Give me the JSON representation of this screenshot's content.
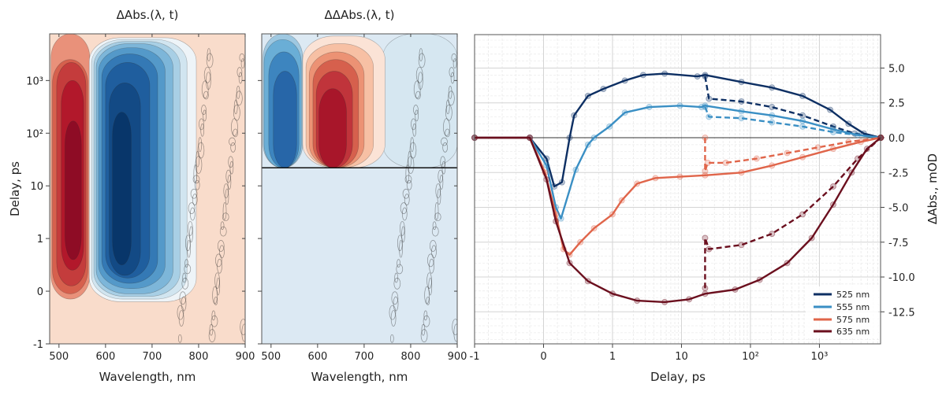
{
  "chart_data": [
    {
      "type": "heatmap",
      "title": "ΔAbs.(λ, t)",
      "xlabel": "Wavelength, nm",
      "ylabel": "Delay, ps",
      "xlim": [
        480,
        900
      ],
      "yscale": "symlog (linear -1..1, log above)",
      "ylim": [
        -1,
        7700
      ],
      "xticks": [
        "500",
        "600",
        "700",
        "800",
        "900"
      ],
      "xtick_values": [
        500,
        600,
        700,
        800,
        900
      ],
      "yticks": [
        "-1",
        "0",
        "1",
        "10",
        "10²",
        "10³"
      ],
      "ytick_values": [
        -1,
        0,
        1,
        10,
        100,
        1000
      ],
      "background_color": "#f9dccb",
      "features": [
        {
          "wl": [
            483,
            566
          ],
          "t": [
            -0.15,
            7700
          ],
          "color": "#e9917a"
        },
        {
          "wl": [
            486,
            562
          ],
          "t": [
            -0.05,
            2500
          ],
          "color": "#d6604d"
        },
        {
          "wl": [
            495,
            558
          ],
          "t": [
            0.1,
            2200
          ],
          "color": "#c43c3c"
        },
        {
          "wl": [
            505,
            553
          ],
          "t": [
            0.4,
            1000
          ],
          "color": "#b2182b"
        },
        {
          "wl": [
            513,
            548
          ],
          "t": [
            0.6,
            170
          ],
          "color": "#8e0c25"
        },
        {
          "wl": [
            565,
            795
          ],
          "t": [
            -0.2,
            6500
          ],
          "color": "#eef4f8"
        },
        {
          "wl": [
            570,
            775
          ],
          "t": [
            -0.15,
            6000
          ],
          "color": "#d1e5f0"
        },
        {
          "wl": [
            575,
            760
          ],
          "t": [
            -0.1,
            5500
          ],
          "color": "#a8cfe5"
        },
        {
          "wl": [
            580,
            745
          ],
          "t": [
            -0.05,
            5000
          ],
          "color": "#7db6d9"
        },
        {
          "wl": [
            585,
            728
          ],
          "t": [
            0.05,
            4200
          ],
          "color": "#5499c9"
        },
        {
          "wl": [
            592,
            712
          ],
          "t": [
            0.15,
            3200
          ],
          "color": "#3479b5"
        },
        {
          "wl": [
            600,
            695
          ],
          "t": [
            0.25,
            2200
          ],
          "color": "#1f5e9e"
        },
        {
          "wl": [
            608,
            675
          ],
          "t": [
            0.3,
            900
          ],
          "color": "#134a85"
        },
        {
          "wl": [
            615,
            655
          ],
          "t": [
            0.5,
            250
          ],
          "color": "#08366a"
        }
      ]
    },
    {
      "type": "heatmap",
      "title": "ΔΔAbs.(λ, t)",
      "xlabel": "Wavelength, nm",
      "xlim": [
        480,
        900
      ],
      "ylim": [
        -1,
        7700
      ],
      "xticks": [
        "500",
        "600",
        "700",
        "800",
        "900"
      ],
      "xtick_values": [
        500,
        600,
        700,
        800,
        900
      ],
      "ytick_values": [
        -1,
        0,
        1,
        10,
        100,
        1000
      ],
      "background_color": "#dce9f3",
      "split_delay": 22,
      "features": [
        {
          "wl": [
            740,
            900
          ],
          "t": [
            22,
            7700
          ],
          "color": "#d6e7f1"
        },
        {
          "wl": [
            483,
            568
          ],
          "t": [
            22,
            7700
          ],
          "color": "#9ec8e1"
        },
        {
          "wl": [
            485,
            565
          ],
          "t": [
            22,
            6000
          ],
          "color": "#6aaed6"
        },
        {
          "wl": [
            495,
            560
          ],
          "t": [
            22,
            3500
          ],
          "color": "#3d85bf"
        },
        {
          "wl": [
            505,
            555
          ],
          "t": [
            22,
            1500
          ],
          "color": "#2766a8"
        },
        {
          "wl": [
            568,
            745
          ],
          "t": [
            22,
            7000
          ],
          "color": "#fbe3d6"
        },
        {
          "wl": [
            575,
            720
          ],
          "t": [
            22,
            5000
          ],
          "color": "#f7c0a4"
        },
        {
          "wl": [
            582,
            700
          ],
          "t": [
            22,
            3500
          ],
          "color": "#ec9274"
        },
        {
          "wl": [
            590,
            688
          ],
          "t": [
            22,
            2500
          ],
          "color": "#d6604d"
        },
        {
          "wl": [
            597,
            675
          ],
          "t": [
            22,
            1500
          ],
          "color": "#c0343b"
        },
        {
          "wl": [
            603,
            662
          ],
          "t": [
            22,
            700
          ],
          "color": "#a8162a"
        }
      ]
    },
    {
      "type": "line",
      "xlabel": "Delay, ps",
      "ylabel": "ΔAbs., mOD",
      "xscale": "symlog (linear -1..1, log above)",
      "xlim": [
        -1,
        7700
      ],
      "ylim": [
        -14.8,
        7.4
      ],
      "xticks": [
        "-1",
        "0",
        "1",
        "10",
        "10²",
        "10³"
      ],
      "xtick_values": [
        -1,
        0,
        1,
        10,
        100,
        1000
      ],
      "yticks": [
        "5.0",
        "2.5",
        "0.0",
        "-2.5",
        "-5.0",
        "-7.5",
        "-10.0",
        "-12.5"
      ],
      "ytick_values": [
        5,
        2.5,
        0,
        -2.5,
        -5,
        -7.5,
        -10,
        -12.5
      ],
      "grid": true,
      "legend_position": "bottom-right",
      "series": [
        {
          "name": "525 nm",
          "color": "#0d2f63",
          "style": "solid",
          "points": [
            [
              -1,
              0
            ],
            [
              -0.2,
              0
            ],
            [
              0.044,
              -1.5
            ],
            [
              0.156,
              -3.5
            ],
            [
              0.267,
              -3.2
            ],
            [
              0.378,
              0
            ],
            [
              0.444,
              1.6
            ],
            [
              0.644,
              3.0
            ],
            [
              0.867,
              3.5
            ],
            [
              1.51,
              4.1
            ],
            [
              2.78,
              4.5
            ],
            [
              5.7,
              4.6
            ],
            [
              17,
              4.4
            ],
            [
              22,
              4.5
            ],
            [
              74,
              4.0
            ],
            [
              205,
              3.6
            ],
            [
              570,
              3.0
            ],
            [
              1430,
              2.0
            ],
            [
              2640,
              1.0
            ],
            [
              4410,
              0.3
            ],
            [
              7740,
              0
            ]
          ]
        },
        {
          "name": "525 nm",
          "color": "#0d2f63",
          "style": "dashed",
          "points": [
            [
              22,
              4.4
            ],
            [
              25,
              2.8
            ],
            [
              74,
              2.6
            ],
            [
              205,
              2.2
            ],
            [
              570,
              1.6
            ],
            [
              1585,
              0.8
            ],
            [
              3240,
              0.3
            ],
            [
              7740,
              0
            ]
          ]
        },
        {
          "name": "555 nm",
          "color": "#3a8fc4",
          "style": "solid",
          "points": [
            [
              -1,
              0
            ],
            [
              -0.2,
              0
            ],
            [
              0.044,
              -2.0
            ],
            [
              0.178,
              -5.0
            ],
            [
              0.253,
              -5.8
            ],
            [
              0.467,
              -2.3
            ],
            [
              0.644,
              -0.5
            ],
            [
              0.733,
              0
            ],
            [
              0.956,
              0.8
            ],
            [
              1.51,
              1.8
            ],
            [
              3.41,
              2.2
            ],
            [
              9.5,
              2.3
            ],
            [
              19.5,
              2.2
            ],
            [
              22,
              2.3
            ],
            [
              74,
              1.9
            ],
            [
              205,
              1.6
            ],
            [
              570,
              1.2
            ],
            [
              1585,
              0.6
            ],
            [
              3590,
              0.2
            ],
            [
              7740,
              0
            ]
          ]
        },
        {
          "name": "555 nm",
          "color": "#3a8fc4",
          "style": "dashed",
          "points": [
            [
              22,
              2.2
            ],
            [
              25,
              1.5
            ],
            [
              74,
              1.4
            ],
            [
              205,
              1.1
            ],
            [
              570,
              0.8
            ],
            [
              1585,
              0.4
            ],
            [
              7740,
              0
            ]
          ]
        },
        {
          "name": "575 nm",
          "color": "#e0654a",
          "style": "solid",
          "points": [
            [
              -1,
              0
            ],
            [
              -0.2,
              0
            ],
            [
              0.022,
              -2.5
            ],
            [
              0.178,
              -5.5
            ],
            [
              0.289,
              -8.0
            ],
            [
              0.378,
              -8.4
            ],
            [
              0.533,
              -7.5
            ],
            [
              0.733,
              -6.5
            ],
            [
              1,
              -5.5
            ],
            [
              1.36,
              -4.5
            ],
            [
              2.27,
              -3.3
            ],
            [
              4.19,
              -2.9
            ],
            [
              9.5,
              -2.8
            ],
            [
              22,
              -2.7
            ],
            [
              74,
              -2.5
            ],
            [
              205,
              -2.0
            ],
            [
              570,
              -1.4
            ],
            [
              1585,
              -0.8
            ],
            [
              3980,
              -0.3
            ],
            [
              7740,
              0
            ]
          ]
        },
        {
          "name": "575 nm",
          "color": "#e0654a",
          "style": "dashed",
          "points": [
            [
              22,
              0
            ],
            [
              22,
              -2.4
            ],
            [
              24,
              -1.8
            ],
            [
              44,
              -1.8
            ],
            [
              123,
              -1.5
            ],
            [
              341,
              -1.1
            ],
            [
              950,
              -0.7
            ],
            [
              2640,
              -0.3
            ],
            [
              7740,
              0
            ]
          ]
        },
        {
          "name": "635 nm",
          "color": "#6b0f1e",
          "style": "solid",
          "points": [
            [
              -1,
              0
            ],
            [
              -0.2,
              0
            ],
            [
              0.044,
              -3.0
            ],
            [
              0.178,
              -6.0
            ],
            [
              0.378,
              -9.0
            ],
            [
              0.644,
              -10.3
            ],
            [
              1,
              -11.2
            ],
            [
              2.27,
              -11.7
            ],
            [
              5.7,
              -11.8
            ],
            [
              12.9,
              -11.6
            ],
            [
              22,
              -11.2
            ],
            [
              60,
              -10.9
            ],
            [
              136,
              -10.2
            ],
            [
              341,
              -9.0
            ],
            [
              774,
              -7.2
            ],
            [
              1585,
              -4.8
            ],
            [
              2930,
              -2.5
            ],
            [
              4890,
              -0.8
            ],
            [
              7740,
              0
            ]
          ]
        },
        {
          "name": "635 nm",
          "color": "#6b0f1e",
          "style": "dashed",
          "points": [
            [
              22,
              -10.8
            ],
            [
              22,
              -7.2
            ],
            [
              25,
              -8.0
            ],
            [
              74,
              -7.7
            ],
            [
              205,
              -6.9
            ],
            [
              570,
              -5.5
            ],
            [
              1585,
              -3.5
            ],
            [
              3590,
              -1.5
            ],
            [
              7740,
              0
            ]
          ]
        }
      ],
      "legend": [
        {
          "label": "525 nm",
          "color": "#0d2f63"
        },
        {
          "label": "555 nm",
          "color": "#3a8fc4"
        },
        {
          "label": "575 nm",
          "color": "#e0654a"
        },
        {
          "label": "635 nm",
          "color": "#6b0f1e"
        }
      ]
    }
  ]
}
